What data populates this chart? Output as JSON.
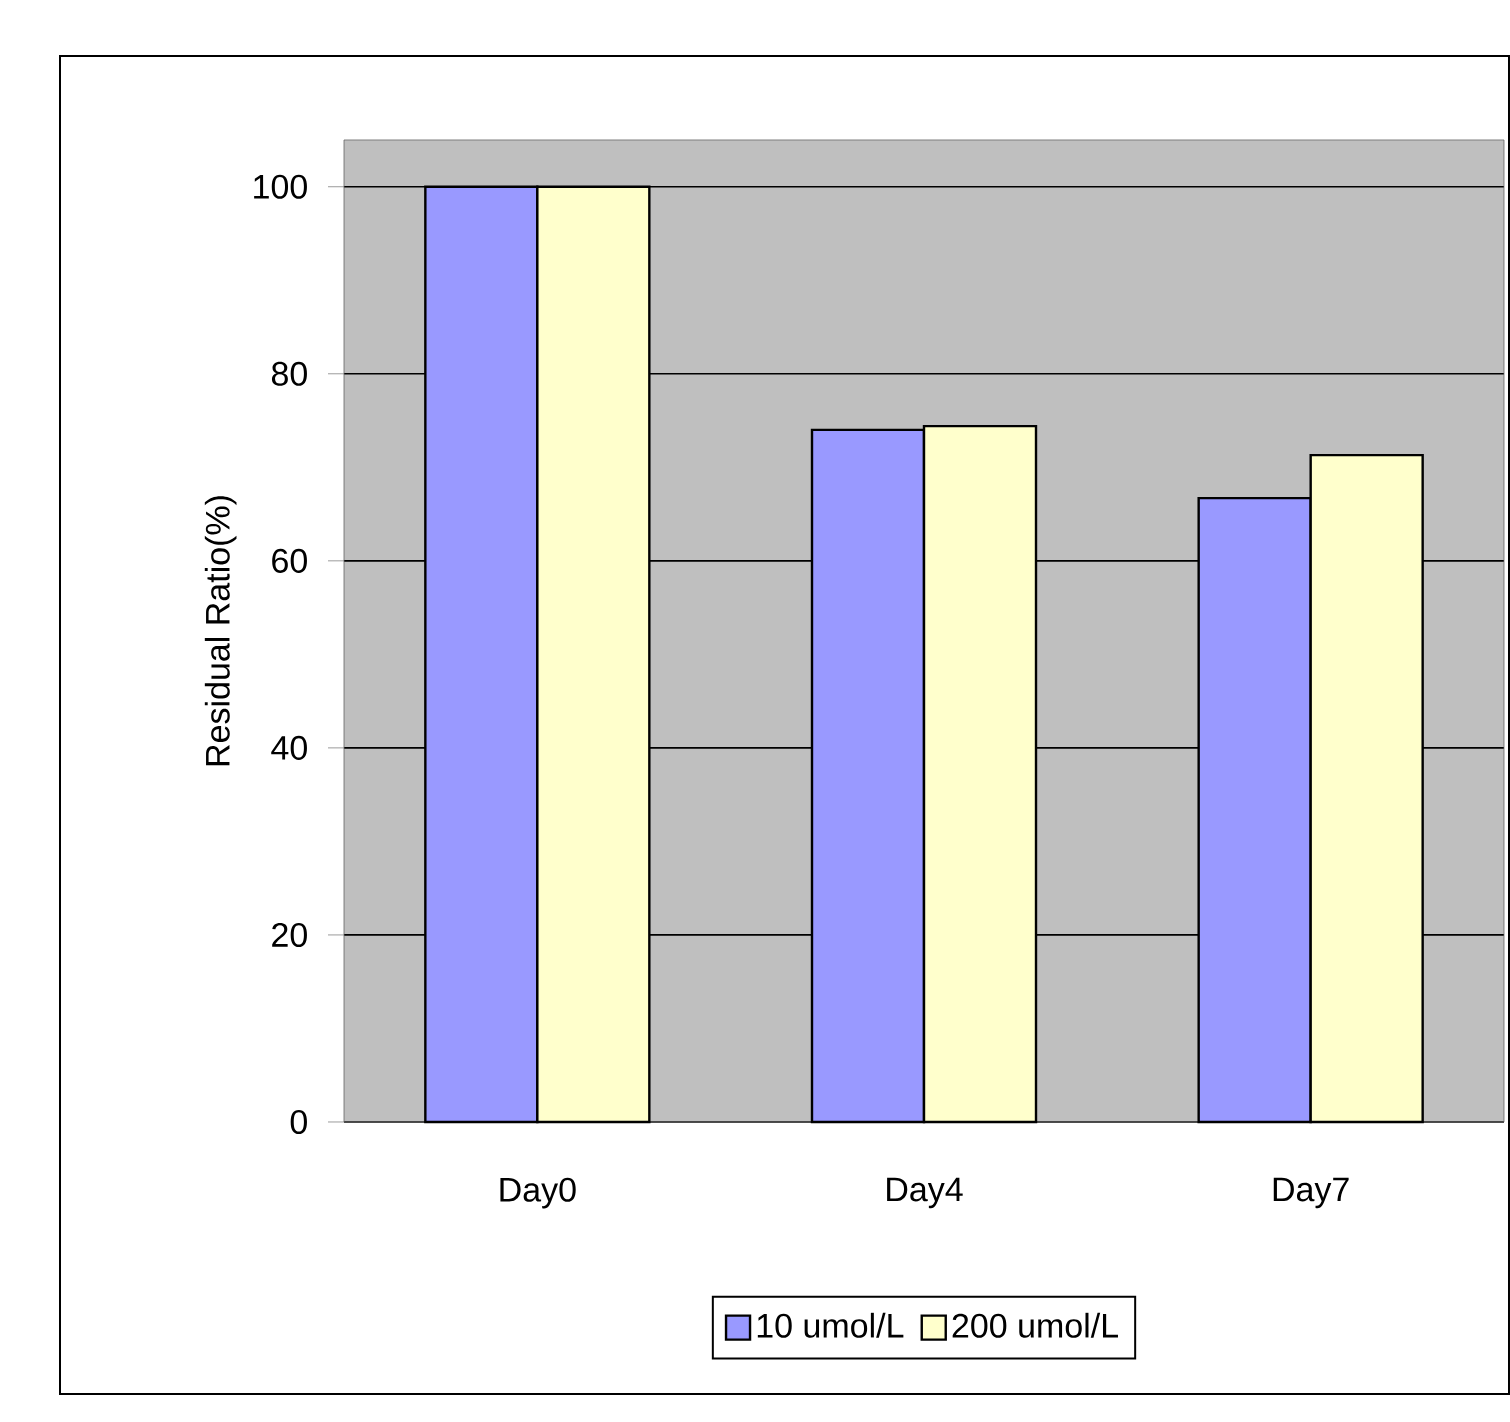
{
  "chart_data": {
    "type": "bar",
    "ylabel": "Residual Ratio(%)",
    "categories": [
      "Day0",
      "Day4",
      "Day7"
    ],
    "series": [
      {
        "name": "10 umol/L",
        "color": "#9999ff",
        "values": [
          100,
          74.0,
          66.7
        ]
      },
      {
        "name": "200 umol/L",
        "color": "#ffffcc",
        "values": [
          100,
          74.4,
          71.3
        ]
      }
    ],
    "ylim": [
      0,
      105
    ],
    "yticks": [
      0,
      20,
      40,
      60,
      80,
      100
    ],
    "grid": "y",
    "legend": "bottom"
  }
}
